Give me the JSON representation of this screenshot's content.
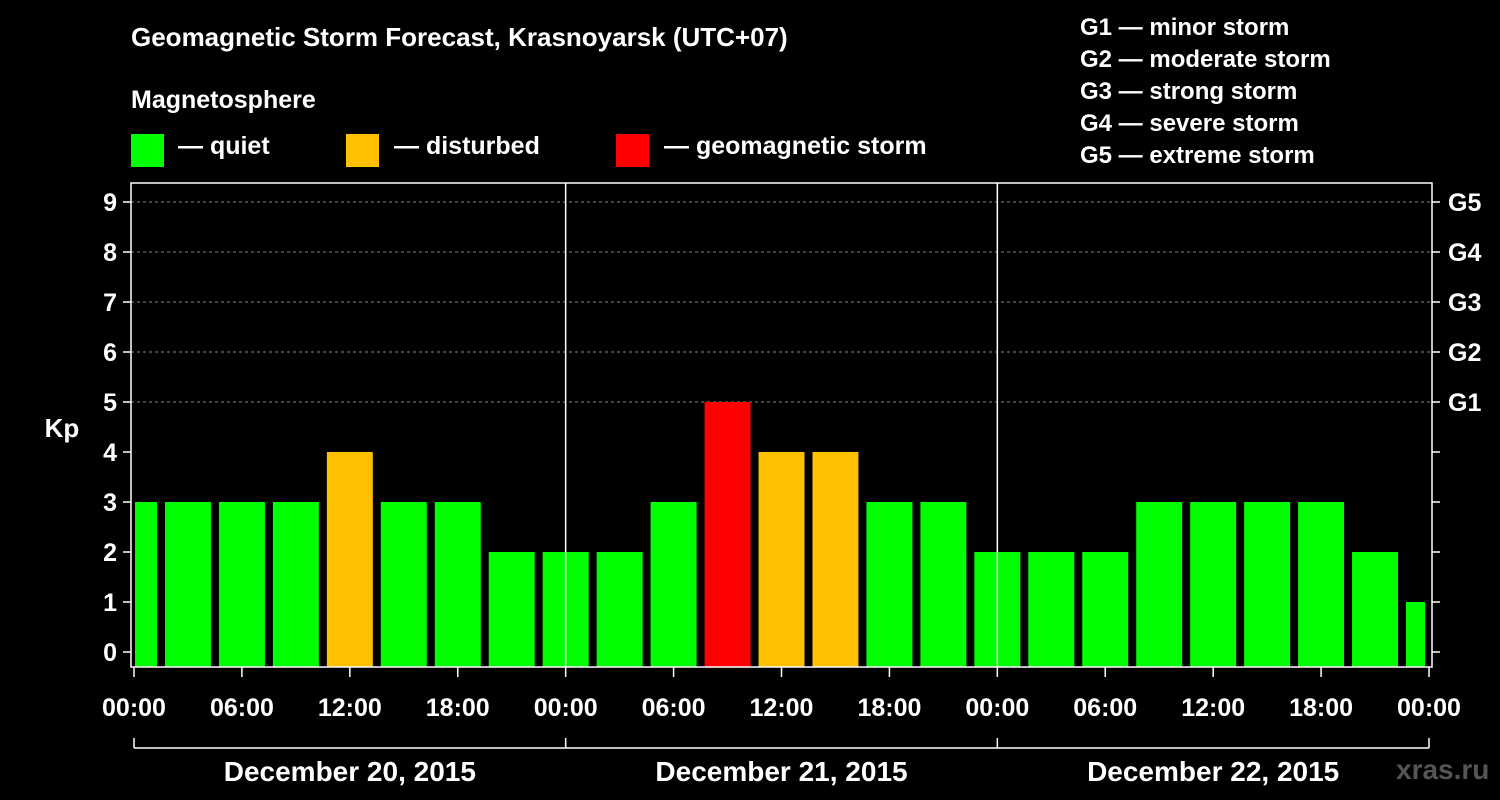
{
  "chart_data": {
    "type": "bar",
    "title": "Geomagnetic Storm Forecast, Krasnoyarsk (UTC+07)",
    "ylabel": "Kp",
    "ylim": [
      0,
      9
    ],
    "yticks": [
      "0",
      "1",
      "2",
      "3",
      "4",
      "5",
      "6",
      "7",
      "8",
      "9"
    ],
    "gscale": [
      {
        "kp": 5,
        "label": "G1"
      },
      {
        "kp": 6,
        "label": "G2"
      },
      {
        "kp": 7,
        "label": "G3"
      },
      {
        "kp": 8,
        "label": "G4"
      },
      {
        "kp": 9,
        "label": "G5"
      }
    ],
    "xticks": [
      "00:00",
      "06:00",
      "12:00",
      "18:00",
      "00:00",
      "06:00",
      "12:00",
      "18:00",
      "00:00",
      "06:00",
      "12:00",
      "18:00",
      "00:00"
    ],
    "days": [
      "December 20, 2015",
      "December 21, 2015",
      "December 22, 2015"
    ],
    "values": [
      3,
      3,
      3,
      3,
      4,
      3,
      3,
      2,
      2,
      2,
      3,
      5,
      4,
      4,
      3,
      3,
      2,
      2,
      2,
      3,
      3,
      3,
      3,
      2,
      1
    ],
    "legend_title": "Magnetosphere",
    "legend": [
      {
        "label": "— quiet",
        "color": "#00ff00"
      },
      {
        "label": "— disturbed",
        "color": "#ffc000"
      },
      {
        "label": "— geomagnetic storm",
        "color": "#ff0000"
      }
    ],
    "storm_scale": [
      "G1 — minor storm",
      "G2 — moderate storm",
      "G3 — strong storm",
      "G4 — severe storm",
      "G5 — extreme storm"
    ],
    "colors": {
      "quiet": "#00ff00",
      "disturbed": "#ffc000",
      "storm": "#ff0000"
    }
  },
  "watermark": "xras.ru"
}
